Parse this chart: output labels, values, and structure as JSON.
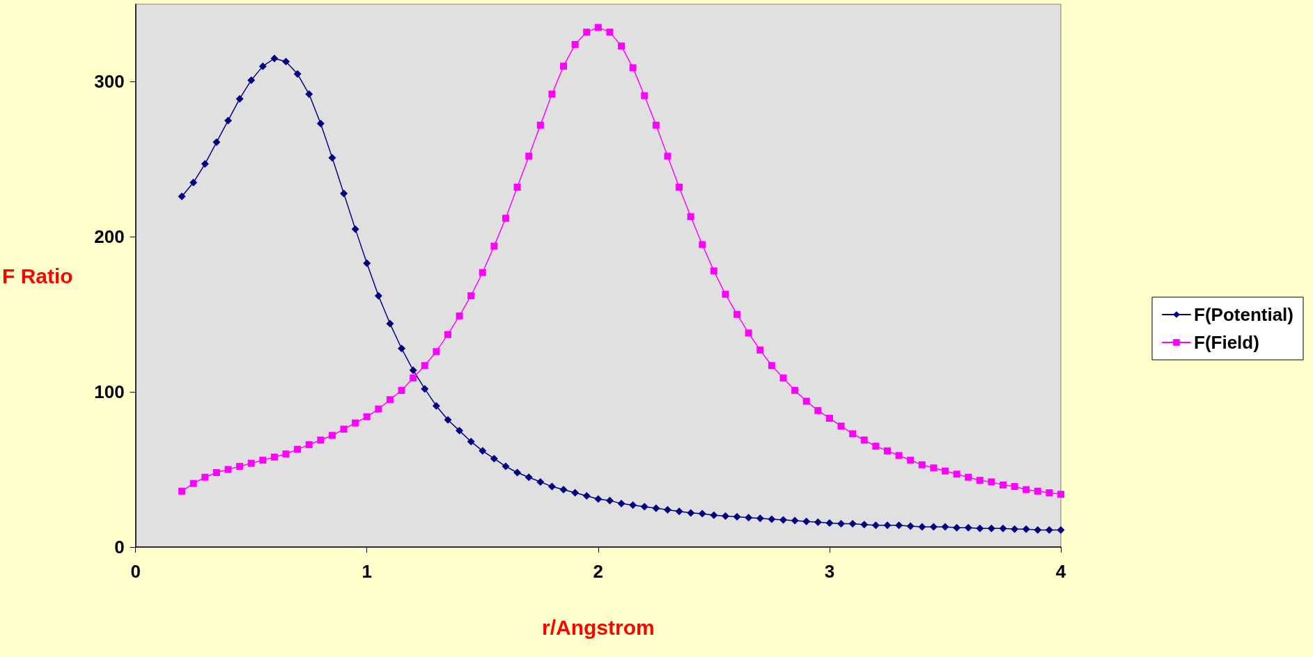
{
  "chart_data": {
    "type": "line",
    "xlabel": "r/Angstrom",
    "ylabel": "F Ratio",
    "x": [
      0.2,
      0.25,
      0.3,
      0.35,
      0.4,
      0.45,
      0.5,
      0.55,
      0.6,
      0.65,
      0.7,
      0.75,
      0.8,
      0.85,
      0.9,
      0.95,
      1.0,
      1.05,
      1.1,
      1.15,
      1.2,
      1.25,
      1.3,
      1.35,
      1.4,
      1.45,
      1.5,
      1.55,
      1.6,
      1.65,
      1.7,
      1.75,
      1.8,
      1.85,
      1.9,
      1.95,
      2.0,
      2.05,
      2.1,
      2.15,
      2.2,
      2.25,
      2.3,
      2.35,
      2.4,
      2.45,
      2.5,
      2.55,
      2.6,
      2.65,
      2.7,
      2.75,
      2.8,
      2.85,
      2.9,
      2.95,
      3.0,
      3.05,
      3.1,
      3.15,
      3.2,
      3.25,
      3.3,
      3.35,
      3.4,
      3.45,
      3.5,
      3.55,
      3.6,
      3.65,
      3.7,
      3.75,
      3.8,
      3.85,
      3.9,
      3.95,
      4.0
    ],
    "series": [
      {
        "name": "F(Potential)",
        "color": "#000080",
        "marker": "diamond",
        "values": [
          226,
          235,
          247,
          261,
          275,
          289,
          301,
          310,
          315,
          313,
          305,
          292,
          273,
          251,
          228,
          205,
          183,
          162,
          144,
          128,
          114,
          102,
          91,
          82,
          75,
          68,
          62,
          57,
          52,
          48,
          45,
          42,
          39,
          37,
          35,
          33,
          31,
          30,
          28,
          27,
          26,
          25,
          24,
          23,
          22,
          21.5,
          20.5,
          20,
          19.5,
          19,
          18.5,
          18,
          17.5,
          17,
          16.5,
          16,
          15.5,
          15,
          15,
          14.5,
          14,
          14,
          14,
          13.5,
          13,
          13,
          13,
          12.5,
          12.5,
          12,
          12,
          12,
          11.5,
          11.5,
          11,
          11,
          11
        ]
      },
      {
        "name": "F(Field)",
        "color": "#ff00ff",
        "marker": "square",
        "values": [
          36,
          41,
          45,
          48,
          50,
          52,
          54,
          56,
          58,
          60,
          63,
          66,
          69,
          72,
          76,
          80,
          84,
          89,
          95,
          101,
          109,
          117,
          126,
          137,
          149,
          162,
          177,
          194,
          212,
          232,
          252,
          272,
          292,
          310,
          324,
          332,
          335,
          332,
          323,
          309,
          291,
          272,
          252,
          232,
          213,
          195,
          178,
          163,
          150,
          138,
          127,
          117,
          109,
          101,
          94,
          88,
          83,
          78,
          73,
          69,
          65,
          62,
          59,
          56,
          53,
          51,
          49,
          47,
          45,
          43,
          42,
          40,
          39,
          37,
          36,
          35,
          34
        ]
      }
    ],
    "xlim": [
      0,
      4
    ],
    "xticks": [
      0,
      1,
      2,
      3,
      4
    ],
    "ylim": [
      0,
      350
    ],
    "yticks": [
      0,
      100,
      200,
      300
    ],
    "grid": false,
    "legend": "right",
    "line_style": "solid"
  }
}
